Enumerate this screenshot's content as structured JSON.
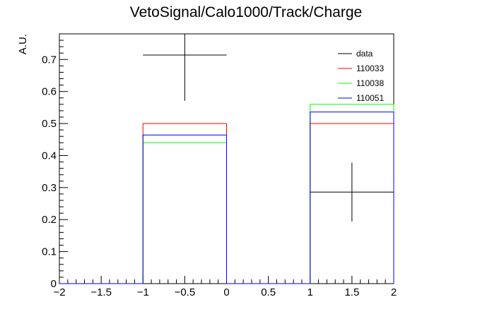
{
  "chart_data": {
    "type": "bar",
    "title": "VetoSignal/Calo1000/Track/Charge",
    "xlabel": "",
    "ylabel": "A.U.",
    "xlim": [
      -2,
      2
    ],
    "ylim": [
      0,
      0.78
    ],
    "x_ticks": [
      "−2",
      "−1.5",
      "−1",
      "−0.5",
      "0",
      "0.5",
      "1",
      "1.5",
      "2"
    ],
    "y_ticks": [
      "0",
      "0.1",
      "0.2",
      "0.3",
      "0.4",
      "0.5",
      "0.6",
      "0.7"
    ],
    "bin_edges": [
      -2,
      -1,
      0,
      1,
      2
    ],
    "legend_position": "top-right",
    "series": [
      {
        "name": "data",
        "kind": "points",
        "color": "#000000",
        "x": [
          -0.5,
          1.5
        ],
        "y": [
          0.714,
          0.286
        ],
        "xerr": [
          0.5,
          0.5
        ],
        "yerr": [
          0.143,
          0.092
        ]
      },
      {
        "name": "110033",
        "kind": "histogram",
        "color": "#ff0000",
        "values": [
          0,
          0.5,
          0,
          0.5
        ]
      },
      {
        "name": "110038",
        "kind": "histogram",
        "color": "#00ff00",
        "values": [
          0,
          0.44,
          0,
          0.56
        ]
      },
      {
        "name": "110051",
        "kind": "histogram",
        "color": "#0000ff",
        "values": [
          0,
          0.464,
          0,
          0.536
        ]
      }
    ]
  }
}
